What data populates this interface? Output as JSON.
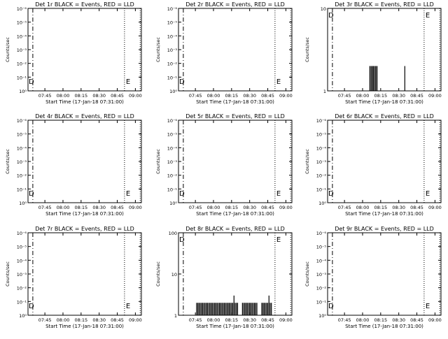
{
  "chart_data": [
    {
      "type": "line",
      "title": "Det 1r BLACK = Events, RED = LLD",
      "xlabel": "Start Time (17-Jan-18 07:31:00)",
      "ylabel": "Counts/sec",
      "y_scale": "log",
      "ylim": [
        1,
        10
      ],
      "ytick_labels": [
        "10⁰",
        "10⁻¹",
        "10⁻²",
        "10⁻³",
        "10⁻⁴",
        "10⁻⁵",
        "10⁻⁶"
      ],
      "xtick_labels": [
        "07:45",
        "08:00",
        "08:15",
        "08:30",
        "08:45",
        "09:00"
      ],
      "markers": [
        "D",
        "E"
      ],
      "series": [
        {
          "name": "Events",
          "color": "#000000",
          "x": [],
          "y": []
        }
      ]
    },
    {
      "type": "line",
      "title": "Det 2r BLACK = Events, RED = LLD",
      "xlabel": "Start Time (17-Jan-18 07:31:00)",
      "ylabel": "Counts/sec",
      "y_scale": "log",
      "ylim": [
        1,
        10
      ],
      "ytick_labels": [
        "10⁰",
        "10⁻¹",
        "10⁻²",
        "10⁻³",
        "10⁻⁴",
        "10⁻⁵",
        "10⁻⁶"
      ],
      "xtick_labels": [
        "07:45",
        "08:00",
        "08:15",
        "08:30",
        "08:45",
        "09:00"
      ],
      "markers": [
        "D",
        "E"
      ],
      "series": [
        {
          "name": "Events",
          "color": "#000000",
          "x": [],
          "y": []
        }
      ]
    },
    {
      "type": "line",
      "title": "Det 3r BLACK = Events, RED = LLD",
      "xlabel": "Start Time (17-Jan-18 07:31:00)",
      "ylabel": "Counts/sec",
      "y_scale": "log",
      "ylim": [
        1,
        10
      ],
      "ytick_labels": [
        "1",
        "10"
      ],
      "xtick_labels": [
        "07:45",
        "08:00",
        "08:15",
        "08:30",
        "08:45",
        "09:00"
      ],
      "markers": [
        "D",
        "E"
      ],
      "series": [
        {
          "name": "Events",
          "color": "#000000",
          "x": [
            "08:06",
            "08:07",
            "08:08",
            "08:08",
            "08:09",
            "08:10",
            "08:11",
            "08:11",
            "08:12",
            "08:35"
          ],
          "y": [
            2,
            2,
            2,
            2,
            2,
            2,
            2,
            2,
            2,
            2
          ]
        }
      ]
    },
    {
      "type": "line",
      "title": "Det 4r BLACK = Events, RED = LLD",
      "xlabel": "Start Time (17-Jan-18 07:31:00)",
      "ylabel": "Counts/sec",
      "y_scale": "log",
      "ylim": [
        1,
        10
      ],
      "ytick_labels": [
        "10⁰",
        "10⁻¹",
        "10⁻²",
        "10⁻³",
        "10⁻⁴",
        "10⁻⁵",
        "10⁻⁶"
      ],
      "xtick_labels": [
        "07:45",
        "08:00",
        "08:15",
        "08:30",
        "08:45",
        "09:00"
      ],
      "markers": [
        "D",
        "E"
      ],
      "series": [
        {
          "name": "Events",
          "color": "#000000",
          "x": [],
          "y": []
        }
      ]
    },
    {
      "type": "line",
      "title": "Det 5r BLACK = Events, RED = LLD",
      "xlabel": "Start Time (17-Jan-18 07:31:00)",
      "ylabel": "Counts/sec",
      "y_scale": "log",
      "ylim": [
        1,
        10
      ],
      "ytick_labels": [
        "10⁰",
        "10⁻¹",
        "10⁻²",
        "10⁻³",
        "10⁻⁴",
        "10⁻⁵",
        "10⁻⁶"
      ],
      "xtick_labels": [
        "07:45",
        "08:00",
        "08:15",
        "08:30",
        "08:45",
        "09:00"
      ],
      "markers": [
        "D",
        "E"
      ],
      "series": [
        {
          "name": "Events",
          "color": "#000000",
          "x": [],
          "y": []
        }
      ]
    },
    {
      "type": "line",
      "title": "Det 6r BLACK = Events, RED = LLD",
      "xlabel": "Start Time (17-Jan-18 07:31:00)",
      "ylabel": "Counts/sec",
      "y_scale": "log",
      "ylim": [
        1,
        10
      ],
      "ytick_labels": [
        "10⁰",
        "10⁻¹",
        "10⁻²",
        "10⁻³",
        "10⁻⁴",
        "10⁻⁵",
        "10⁻⁶"
      ],
      "xtick_labels": [
        "07:45",
        "08:00",
        "08:15",
        "08:30",
        "08:45",
        "09:00"
      ],
      "markers": [
        "D",
        "E"
      ],
      "series": [
        {
          "name": "Events",
          "color": "#000000",
          "x": [],
          "y": []
        }
      ]
    },
    {
      "type": "line",
      "title": "Det 7r BLACK = Events, RED = LLD",
      "xlabel": "Start Time (17-Jan-18 07:31:00)",
      "ylabel": "Counts/sec",
      "y_scale": "log",
      "ylim": [
        1,
        10
      ],
      "ytick_labels": [
        "10⁰",
        "10⁻¹",
        "10⁻²",
        "10⁻³",
        "10⁻⁴",
        "10⁻⁵",
        "10⁻⁶"
      ],
      "xtick_labels": [
        "07:45",
        "08:00",
        "08:15",
        "08:30",
        "08:45",
        "09:00"
      ],
      "markers": [
        "D",
        "E"
      ],
      "series": [
        {
          "name": "Events",
          "color": "#000000",
          "x": [],
          "y": []
        }
      ]
    },
    {
      "type": "line",
      "title": "Det 8r BLACK = Events, RED = LLD",
      "xlabel": "Start Time (17-Jan-18 07:31:00)",
      "ylabel": "Counts/sec",
      "y_scale": "log",
      "ylim": [
        1,
        100
      ],
      "ytick_labels": [
        "1",
        "10",
        "100"
      ],
      "xtick_labels": [
        "07:45",
        "08:00",
        "08:15",
        "08:30",
        "08:45",
        "09:00"
      ],
      "markers": [
        "D",
        "E"
      ],
      "series": [
        {
          "name": "Events",
          "color": "#000000",
          "x": [
            "07:46",
            "07:47",
            "07:48",
            "07:49",
            "07:50",
            "07:51",
            "07:52",
            "07:53",
            "07:54",
            "07:55",
            "07:56",
            "07:57",
            "07:58",
            "07:59",
            "08:00",
            "08:01",
            "08:02",
            "08:03",
            "08:04",
            "08:05",
            "08:06",
            "08:07",
            "08:08",
            "08:09",
            "08:10",
            "08:11",
            "08:12",
            "08:13",
            "08:14",
            "08:15",
            "08:16",
            "08:17",
            "08:18",
            "08:19",
            "08:20",
            "08:24",
            "08:25",
            "08:26",
            "08:27",
            "08:28",
            "08:29",
            "08:30",
            "08:31",
            "08:32",
            "08:33",
            "08:34",
            "08:35",
            "08:36",
            "08:40",
            "08:41",
            "08:42",
            "08:43",
            "08:44",
            "08:45",
            "08:46",
            "08:47",
            "08:48"
          ],
          "y": [
            2,
            2,
            2,
            2,
            2,
            2,
            2,
            2,
            2,
            2,
            2,
            2,
            2,
            2,
            2,
            2,
            2,
            2,
            2,
            2,
            2,
            2,
            2,
            2,
            2,
            2,
            2,
            2,
            2,
            2,
            2,
            3,
            2,
            2,
            2,
            2,
            2,
            2,
            2,
            2,
            2,
            2,
            2,
            2,
            2,
            2,
            2,
            2,
            2,
            2,
            2,
            2,
            2,
            2,
            3,
            2,
            2
          ]
        }
      ]
    },
    {
      "type": "line",
      "title": "Det 9r BLACK = Events, RED = LLD",
      "xlabel": "Start Time (17-Jan-18 07:31:00)",
      "ylabel": "Counts/sec",
      "y_scale": "log",
      "ylim": [
        1,
        10
      ],
      "ytick_labels": [
        "10⁰",
        "10⁻¹",
        "10⁻²",
        "10⁻³",
        "10⁻⁴",
        "10⁻⁵",
        "10⁻⁶"
      ],
      "xtick_labels": [
        "07:45",
        "08:00",
        "08:15",
        "08:30",
        "08:45",
        "09:00"
      ],
      "markers": [
        "D",
        "E"
      ],
      "series": [
        {
          "name": "Events",
          "color": "#000000",
          "x": [],
          "y": []
        }
      ]
    }
  ]
}
